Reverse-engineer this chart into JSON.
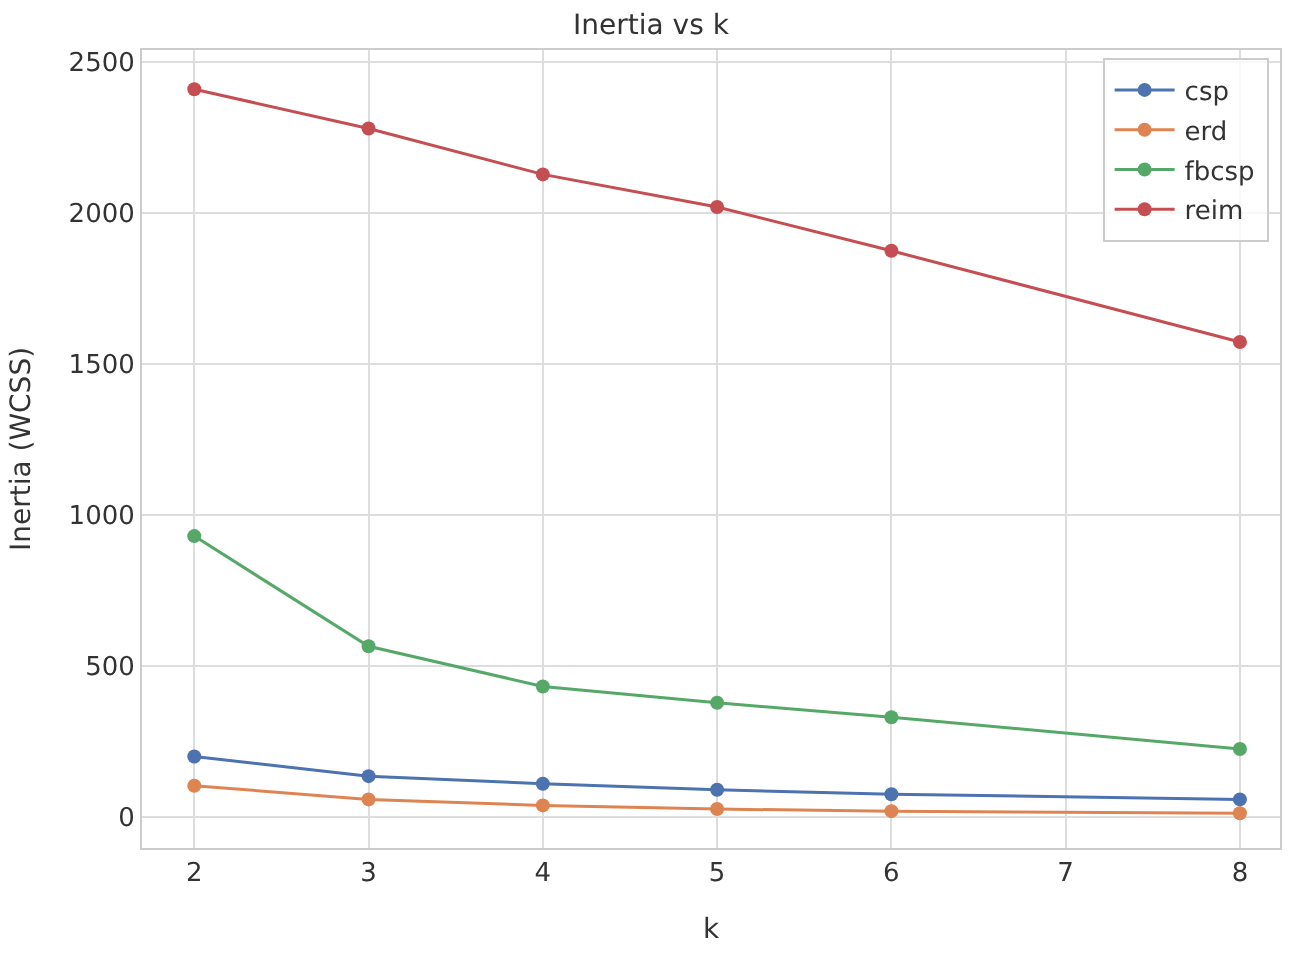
{
  "chart_data": {
    "type": "line",
    "title": "Inertia vs k",
    "xlabel": "k",
    "ylabel": "Inertia (WCSS)",
    "x": [
      2,
      3,
      4,
      5,
      6,
      8
    ],
    "series": [
      {
        "name": "csp",
        "color": "#4c72b0",
        "values": [
          200,
          135,
          110,
          90,
          75,
          58
        ]
      },
      {
        "name": "erd",
        "color": "#dd8452",
        "values": [
          103,
          58,
          38,
          26,
          19,
          12
        ]
      },
      {
        "name": "fbcsp",
        "color": "#55a868",
        "values": [
          930,
          565,
          432,
          378,
          330,
          225
        ]
      },
      {
        "name": "reim",
        "color": "#c44e52",
        "values": [
          2410,
          2280,
          2128,
          2020,
          1875,
          1573
        ]
      }
    ],
    "xlim": [
      1.7,
      8.23
    ],
    "xticks": [
      2,
      3,
      4,
      5,
      6,
      7,
      8
    ],
    "ylim": [
      -103,
      2540
    ],
    "yticks": [
      0,
      500,
      1000,
      1500,
      2000,
      2500
    ],
    "grid": true,
    "legend": "top right",
    "marker": "circle",
    "line_style": "solid"
  }
}
